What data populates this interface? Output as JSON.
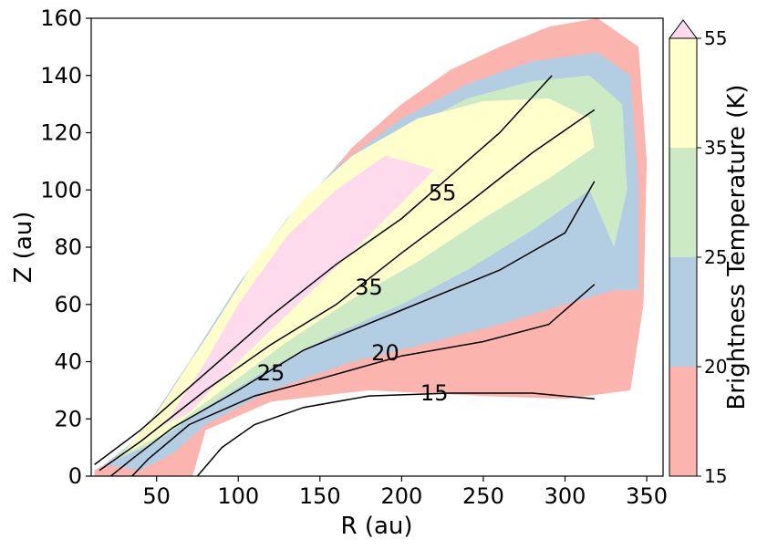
{
  "chart_data": {
    "type": "contour",
    "xlabel": "R (au)",
    "ylabel": "Z (au)",
    "xlim": [
      10,
      360
    ],
    "ylim": [
      0,
      160
    ],
    "xticks": [
      50,
      100,
      150,
      200,
      250,
      300,
      350
    ],
    "yticks": [
      0,
      20,
      40,
      60,
      80,
      100,
      120,
      140,
      160
    ],
    "colorbar": {
      "label": "Brightness Temperature (K)",
      "ticks": [
        15,
        20,
        25,
        35,
        55
      ],
      "levels": [
        15,
        20,
        25,
        35,
        55
      ],
      "extend": "max",
      "colors": [
        "#fbb4ae",
        "#b3cde3",
        "#ccebc5",
        "#ffffcc",
        "#fddaec"
      ]
    },
    "contour_labels": [
      "15",
      "20",
      "25",
      "35",
      "55"
    ],
    "filled_regions": [
      {
        "level": "15-20",
        "color": "#fbb4ae",
        "points": [
          [
            12,
            2
          ],
          [
            30,
            8
          ],
          [
            50,
            20
          ],
          [
            80,
            45
          ],
          [
            110,
            70
          ],
          [
            140,
            95
          ],
          [
            170,
            115
          ],
          [
            200,
            130
          ],
          [
            230,
            142
          ],
          [
            260,
            150
          ],
          [
            290,
            157
          ],
          [
            320,
            160
          ],
          [
            345,
            150
          ],
          [
            350,
            110
          ],
          [
            348,
            60
          ],
          [
            340,
            30
          ],
          [
            300,
            27
          ],
          [
            250,
            28
          ],
          [
            180,
            30
          ],
          [
            120,
            26
          ],
          [
            80,
            16
          ],
          [
            72,
            0
          ],
          [
            12,
            0
          ]
        ]
      },
      {
        "level": "20-25",
        "color": "#b3cde3",
        "points": [
          [
            18,
            4
          ],
          [
            40,
            14
          ],
          [
            70,
            40
          ],
          [
            100,
            67
          ],
          [
            130,
            90
          ],
          [
            160,
            108
          ],
          [
            200,
            125
          ],
          [
            240,
            137
          ],
          [
            280,
            145
          ],
          [
            320,
            148
          ],
          [
            340,
            140
          ],
          [
            345,
            100
          ],
          [
            345,
            65
          ],
          [
            330,
            65
          ],
          [
            300,
            60
          ],
          [
            260,
            53
          ],
          [
            220,
            47
          ],
          [
            170,
            40
          ],
          [
            120,
            30
          ],
          [
            80,
            18
          ],
          [
            60,
            8
          ],
          [
            40,
            2
          ]
        ]
      },
      {
        "level": "25-35",
        "color": "#ccebc5",
        "points": [
          [
            22,
            5
          ],
          [
            45,
            17
          ],
          [
            70,
            40
          ],
          [
            100,
            64
          ],
          [
            130,
            87
          ],
          [
            160,
            105
          ],
          [
            200,
            120
          ],
          [
            240,
            132
          ],
          [
            280,
            138
          ],
          [
            315,
            140
          ],
          [
            335,
            130
          ],
          [
            338,
            100
          ],
          [
            330,
            80
          ],
          [
            315,
            100
          ],
          [
            280,
            86
          ],
          [
            240,
            72
          ],
          [
            200,
            60
          ],
          [
            160,
            50
          ],
          [
            120,
            38
          ],
          [
            80,
            24
          ],
          [
            50,
            12
          ]
        ]
      },
      {
        "level": "35-55",
        "color": "#ffffcc",
        "points": [
          [
            28,
            7
          ],
          [
            50,
            22
          ],
          [
            80,
            48
          ],
          [
            110,
            75
          ],
          [
            140,
            97
          ],
          [
            170,
            112
          ],
          [
            210,
            125
          ],
          [
            250,
            131
          ],
          [
            290,
            132
          ],
          [
            315,
            125
          ],
          [
            318,
            115
          ],
          [
            290,
            104
          ],
          [
            250,
            90
          ],
          [
            210,
            75
          ],
          [
            170,
            62
          ],
          [
            130,
            47
          ],
          [
            90,
            30
          ],
          [
            55,
            15
          ]
        ]
      },
      {
        "level": ">55",
        "color": "#fddaec",
        "points": [
          [
            55,
            18
          ],
          [
            80,
            40
          ],
          [
            100,
            60
          ],
          [
            130,
            84
          ],
          [
            160,
            100
          ],
          [
            190,
            112
          ],
          [
            220,
            107
          ],
          [
            180,
            84
          ],
          [
            140,
            62
          ],
          [
            100,
            40
          ],
          [
            70,
            22
          ]
        ]
      }
    ],
    "contour_lines": [
      {
        "level": 15,
        "points": [
          [
            75,
            0
          ],
          [
            90,
            10
          ],
          [
            110,
            18
          ],
          [
            140,
            24
          ],
          [
            180,
            28
          ],
          [
            230,
            29
          ],
          [
            280,
            29
          ],
          [
            318,
            27
          ]
        ]
      },
      {
        "level": 20,
        "points": [
          [
            35,
            0
          ],
          [
            45,
            6
          ],
          [
            70,
            18
          ],
          [
            110,
            28
          ],
          [
            150,
            34
          ],
          [
            200,
            42
          ],
          [
            250,
            47
          ],
          [
            290,
            53
          ],
          [
            318,
            67
          ]
        ]
      },
      {
        "level": 25,
        "points": [
          [
            22,
            0
          ],
          [
            35,
            6
          ],
          [
            60,
            17
          ],
          [
            100,
            30
          ],
          [
            140,
            44
          ],
          [
            200,
            58
          ],
          [
            260,
            72
          ],
          [
            300,
            85
          ],
          [
            318,
            103
          ]
        ]
      },
      {
        "level": 35,
        "points": [
          [
            15,
            2
          ],
          [
            40,
            12
          ],
          [
            80,
            30
          ],
          [
            120,
            46
          ],
          [
            160,
            60
          ],
          [
            200,
            78
          ],
          [
            240,
            95
          ],
          [
            280,
            113
          ],
          [
            318,
            128
          ]
        ]
      },
      {
        "level": 55,
        "points": [
          [
            12,
            4
          ],
          [
            40,
            16
          ],
          [
            80,
            36
          ],
          [
            120,
            56
          ],
          [
            160,
            74
          ],
          [
            200,
            90
          ],
          [
            230,
            105
          ],
          [
            260,
            120
          ],
          [
            292,
            140
          ]
        ]
      }
    ],
    "contour_label_positions": [
      {
        "text": "15",
        "x": 220,
        "y": 29
      },
      {
        "text": "20",
        "x": 190,
        "y": 43
      },
      {
        "text": "25",
        "x": 120,
        "y": 36
      },
      {
        "text": "35",
        "x": 180,
        "y": 66
      },
      {
        "text": "55",
        "x": 225,
        "y": 99
      }
    ]
  }
}
